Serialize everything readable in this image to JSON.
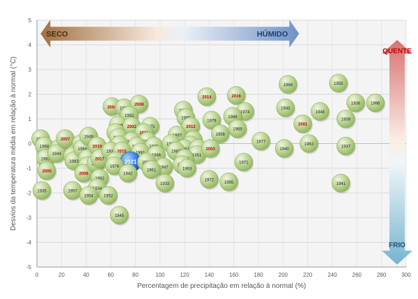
{
  "chart_data": {
    "type": "scatter",
    "xlabel": "Percentagem de precipitação em relação à normal (%)",
    "ylabel": "Desvios da temperatura média em relação à normal (°C)",
    "xlim": [
      0,
      300
    ],
    "ylim": [
      -5,
      5
    ],
    "xticks": [
      "0",
      "20",
      "40",
      "60",
      "80",
      "100",
      "120",
      "140",
      "160",
      "180",
      "200",
      "220",
      "240",
      "260",
      "280",
      "300"
    ],
    "yticks": [
      "-5",
      "-4",
      "-3",
      "-2",
      "-1",
      "0",
      "1",
      "2",
      "3",
      "4",
      "5"
    ],
    "grid": true,
    "annotations": {
      "dry": "SECO",
      "wet": "HÚMIDO",
      "hot": "QUENTE",
      "cold": "FRIO"
    },
    "colors": {
      "bubble": "#a9c97e",
      "recent_label": "#c00000",
      "highlight": "#2b6fd6",
      "dry_arrow": "#a0703f",
      "wet_arrow": "#6f8fbf",
      "hot_arrow": "#d97a7a",
      "cold_arrow": "#7fb3cf"
    },
    "points": [
      {
        "label": "1981",
        "x": 3,
        "y": 0.2
      },
      {
        "label": "1968",
        "x": 6,
        "y": -0.1
      },
      {
        "label": "1983",
        "x": 7,
        "y": -0.6
      },
      {
        "label": "2005",
        "x": 8,
        "y": -1.1,
        "recent": true
      },
      {
        "label": "1935",
        "x": 4,
        "y": -1.9
      },
      {
        "label": "2012",
        "x": 18,
        "y": -0.2,
        "recent": true
      },
      {
        "label": "1944",
        "x": 16,
        "y": -0.4
      },
      {
        "label": "2007",
        "x": 23,
        "y": 0.2,
        "recent": true
      },
      {
        "label": "2000",
        "x": 29,
        "y": -0.5
      },
      {
        "label": "1993",
        "x": 30,
        "y": -0.7
      },
      {
        "label": "1957",
        "x": 29,
        "y": -1.9
      },
      {
        "label": "1989",
        "x": 36,
        "y": 0.0
      },
      {
        "label": "1964",
        "x": 37,
        "y": -0.2
      },
      {
        "label": "1949",
        "x": 42,
        "y": 0.3
      },
      {
        "label": "1950",
        "x": 41,
        "y": -0.6
      },
      {
        "label": "1953",
        "x": 41,
        "y": -0.9
      },
      {
        "label": "2006",
        "x": 38,
        "y": -1.2,
        "recent": true
      },
      {
        "label": "2019",
        "x": 49,
        "y": -0.1,
        "recent": true
      },
      {
        "label": "1946",
        "x": 48,
        "y": -0.8
      },
      {
        "label": "2017",
        "x": 51,
        "y": -0.6,
        "recent": true
      },
      {
        "label": "1992",
        "x": 51,
        "y": -1.4
      },
      {
        "label": "1934",
        "x": 49,
        "y": -1.8
      },
      {
        "label": "1954",
        "x": 42,
        "y": -2.1
      },
      {
        "label": "1952",
        "x": 58,
        "y": -2.1
      },
      {
        "label": "1945",
        "x": 67,
        "y": -2.9
      },
      {
        "label": "2004",
        "x": 61,
        "y": 1.5,
        "recent": true
      },
      {
        "label": "1998",
        "x": 71,
        "y": 1.45
      },
      {
        "label": "2008",
        "x": 83,
        "y": 1.6,
        "recent": true
      },
      {
        "label": "1982",
        "x": 75,
        "y": 1.15
      },
      {
        "label": "2020",
        "x": 66,
        "y": 0.75,
        "recent": true
      },
      {
        "label": "2002",
        "x": 77,
        "y": 0.7,
        "recent": true
      },
      {
        "label": "1980",
        "x": 64,
        "y": 0.45
      },
      {
        "label": "1975",
        "x": 92,
        "y": 0.7
      },
      {
        "label": "2011",
        "x": 87,
        "y": 0.45,
        "recent": true
      },
      {
        "label": "2018",
        "x": 66,
        "y": 0.25,
        "recent": true
      },
      {
        "label": "1931",
        "x": 77,
        "y": 0.1
      },
      {
        "label": "1990",
        "x": 90,
        "y": 0.1
      },
      {
        "label": "1999",
        "x": 67,
        "y": -0.05
      },
      {
        "label": "1984",
        "x": 81,
        "y": -0.1
      },
      {
        "label": "1978",
        "x": 95,
        "y": -0.1
      },
      {
        "label": "1938",
        "x": 60,
        "y": -0.3
      },
      {
        "label": "2015",
        "x": 69,
        "y": -0.3,
        "recent": true
      },
      {
        "label": "1991",
        "x": 84,
        "y": -0.35
      },
      {
        "label": "1986",
        "x": 97,
        "y": -0.45
      },
      {
        "label": "1932",
        "x": 64,
        "y": -0.7
      },
      {
        "label": "2021",
        "x": 76,
        "y": -0.75,
        "recent": true,
        "highlight": true
      },
      {
        "label": "1967",
        "x": 89,
        "y": -0.75
      },
      {
        "label": "1947",
        "x": 103,
        "y": -0.95
      },
      {
        "label": "1976",
        "x": 63,
        "y": -0.9
      },
      {
        "label": "1942",
        "x": 74,
        "y": -1.2
      },
      {
        "label": "1961",
        "x": 93,
        "y": -1.05
      },
      {
        "label": "1933",
        "x": 104,
        "y": -1.6
      },
      {
        "label": "1959",
        "x": 119,
        "y": 1.35
      },
      {
        "label": "1995",
        "x": 121,
        "y": 1.05
      },
      {
        "label": "2013",
        "x": 125,
        "y": 0.7,
        "recent": true
      },
      {
        "label": "2014",
        "x": 138,
        "y": 1.9,
        "recent": true
      },
      {
        "label": "1979",
        "x": 142,
        "y": 0.95
      },
      {
        "label": "2016",
        "x": 162,
        "y": 1.95,
        "recent": true
      },
      {
        "label": "1974",
        "x": 169,
        "y": 1.3
      },
      {
        "label": "1988",
        "x": 159,
        "y": 1.1
      },
      {
        "label": "1969",
        "x": 163,
        "y": 0.6
      },
      {
        "label": "1956",
        "x": 149,
        "y": 0.4
      },
      {
        "label": "1997",
        "x": 114,
        "y": 0.35
      },
      {
        "label": "1960",
        "x": 109,
        "y": 0.0
      },
      {
        "label": "2010",
        "x": 127,
        "y": 0.15,
        "recent": true
      },
      {
        "label": "1994",
        "x": 125,
        "y": -0.05
      },
      {
        "label": "1962",
        "x": 120,
        "y": -0.2
      },
      {
        "label": "1958",
        "x": 131,
        "y": -0.2
      },
      {
        "label": "1987",
        "x": 113,
        "y": -0.3
      },
      {
        "label": "1951",
        "x": 130,
        "y": -0.45
      },
      {
        "label": "2003",
        "x": 141,
        "y": -0.2,
        "recent": true
      },
      {
        "label": "1973",
        "x": 120,
        "y": -0.6
      },
      {
        "label": "2009",
        "x": 118,
        "y": -0.85,
        "recent": true
      },
      {
        "label": "1963",
        "x": 122,
        "y": -1.0
      },
      {
        "label": "1972",
        "x": 140,
        "y": -1.45
      },
      {
        "label": "1985",
        "x": 156,
        "y": -1.55
      },
      {
        "label": "1971",
        "x": 168,
        "y": -0.75
      },
      {
        "label": "1977",
        "x": 182,
        "y": 0.1
      },
      {
        "label": "1966",
        "x": 204,
        "y": 2.4
      },
      {
        "label": "1943",
        "x": 202,
        "y": 1.45
      },
      {
        "label": "1940",
        "x": 201,
        "y": -0.2
      },
      {
        "label": "2001",
        "x": 216,
        "y": 0.8,
        "recent": true
      },
      {
        "label": "1963",
        "x": 221,
        "y": 0.0
      },
      {
        "label": "1948",
        "x": 230,
        "y": 1.3
      },
      {
        "label": "1955",
        "x": 245,
        "y": 2.45
      },
      {
        "label": "1939",
        "x": 251,
        "y": 1.0
      },
      {
        "label": "1937",
        "x": 251,
        "y": -0.1
      },
      {
        "label": "1941",
        "x": 247,
        "y": -1.6
      },
      {
        "label": "1936",
        "x": 259,
        "y": 1.65
      },
      {
        "label": "1996",
        "x": 275,
        "y": 1.65
      }
    ]
  }
}
